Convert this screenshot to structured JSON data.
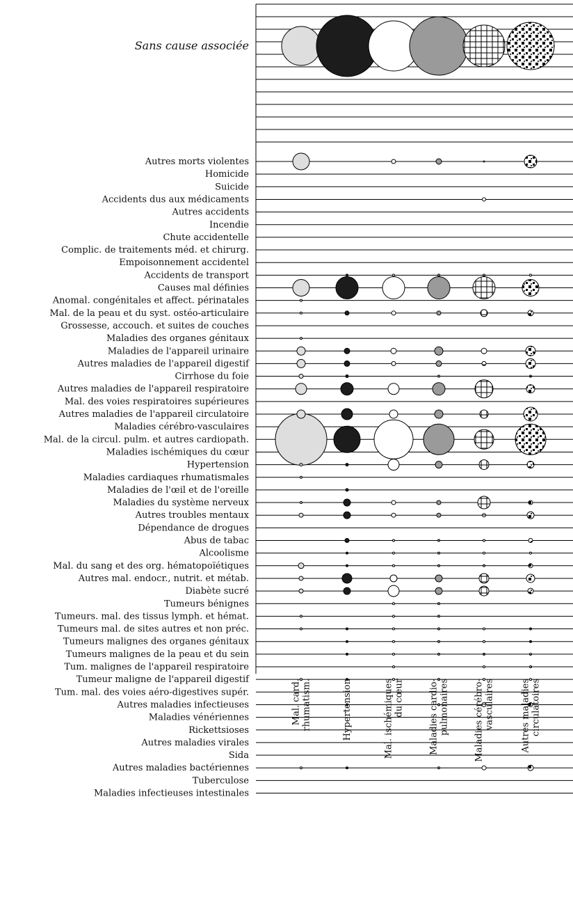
{
  "chart_data": {
    "type": "bubble-matrix",
    "top_row": {
      "label": "Sans cause associée",
      "values": [
        28,
        44,
        36,
        42,
        30,
        34
      ]
    },
    "columns": [
      {
        "key": "rhum",
        "lines": [
          "Mal. card.",
          "rhumatism."
        ],
        "pattern": "lightgray"
      },
      {
        "key": "hyp",
        "lines": [
          "Hypertension"
        ],
        "pattern": "black"
      },
      {
        "key": "isch",
        "lines": [
          "Mal. ischémiques",
          "du cœur"
        ],
        "pattern": "white"
      },
      {
        "key": "pulm",
        "lines": [
          "Maladies cardio-",
          "pulmonaires"
        ],
        "pattern": "gray"
      },
      {
        "key": "cere",
        "lines": [
          "Maladies cérébro-",
          "vasculaires"
        ],
        "pattern": "hatch"
      },
      {
        "key": "circ",
        "lines": [
          "Autres maladies",
          "circulatoires"
        ],
        "pattern": "checker"
      }
    ],
    "rows": [
      {
        "label": "Autres morts violentes",
        "values": [
          12,
          0,
          3,
          4,
          1,
          9
        ]
      },
      {
        "label": "Homicide",
        "values": [
          0,
          0,
          0,
          0,
          0,
          0
        ]
      },
      {
        "label": "Suicide",
        "values": [
          0,
          0,
          0,
          0,
          0,
          0
        ]
      },
      {
        "label": "Accidents dus aux médicaments",
        "values": [
          0,
          0,
          0,
          0,
          2.5,
          0
        ]
      },
      {
        "label": "Autres accidents",
        "values": [
          0,
          0,
          0,
          0,
          0,
          0
        ]
      },
      {
        "label": "Incendie",
        "values": [
          0,
          0,
          0,
          0,
          0,
          0
        ]
      },
      {
        "label": "Chute accidentelle",
        "values": [
          0,
          0,
          0,
          0,
          0,
          0
        ]
      },
      {
        "label": "Complic. de traitements méd. et chirurg.",
        "values": [
          0,
          0,
          0,
          0,
          0,
          0
        ]
      },
      {
        "label": "Empoisonnement accidentel",
        "values": [
          0,
          0,
          0,
          0,
          0,
          0
        ]
      },
      {
        "label": "Accidents de transport",
        "values": [
          0,
          1.5,
          1.5,
          1.5,
          1.5,
          1.5
        ]
      },
      {
        "label": "Causes mal définies",
        "values": [
          12,
          16,
          16,
          16,
          16,
          12
        ]
      },
      {
        "label": "Anomal. congénitales et affect. périnatales",
        "values": [
          1.5,
          0,
          0,
          0,
          0,
          0
        ]
      },
      {
        "label": "Mal. de la peau et du syst. ostéo-articulaire",
        "values": [
          1.5,
          3,
          3,
          3,
          5,
          4
        ]
      },
      {
        "label": "Grossesse, accouch. et suites de couches",
        "values": [
          0,
          0,
          0,
          0,
          0,
          0
        ]
      },
      {
        "label": "Maladies des organes génitaux",
        "values": [
          1.5,
          0,
          0,
          0,
          0,
          0
        ]
      },
      {
        "label": "Maladies de l'appareil urinaire",
        "values": [
          6,
          4,
          4,
          6,
          4,
          7
        ]
      },
      {
        "label": "Autres maladies de l'appareil digestif",
        "values": [
          6,
          4,
          3,
          4,
          3,
          7
        ]
      },
      {
        "label": "Cirrhose du foie",
        "values": [
          3,
          2,
          0,
          1.5,
          0,
          1.5
        ]
      },
      {
        "label": "Autres maladies de l'appareil respiratoire",
        "values": [
          8,
          9,
          8,
          9,
          13,
          6
        ]
      },
      {
        "label": "Mal. des voies respiratoires supérieures",
        "values": [
          0,
          0,
          0,
          0,
          0,
          0
        ]
      },
      {
        "label": "Autres maladies de l'appareil circulatoire",
        "values": [
          6,
          8,
          6,
          6,
          6,
          10
        ]
      },
      {
        "label": "Maladies cérébro-vasculaires",
        "values": [
          0,
          0,
          0,
          0,
          0,
          0
        ]
      },
      {
        "label": "Mal. de la circul. pulm. et autres cardiopath.",
        "values": [
          37,
          19,
          28,
          22,
          14,
          22
        ]
      },
      {
        "label": "Maladies ischémiques du cœur",
        "values": [
          0,
          0,
          0,
          0,
          0,
          0
        ]
      },
      {
        "label": "Hypertension",
        "values": [
          2,
          2,
          8,
          5,
          7,
          5
        ]
      },
      {
        "label": "Maladies cardiaques rhumatismales",
        "values": [
          1.5,
          0,
          0,
          0,
          0,
          0
        ]
      },
      {
        "label": "Maladies de l'œil et de l'oreille",
        "values": [
          0,
          2,
          0,
          0,
          0,
          0
        ]
      },
      {
        "label": "Maladies du système nerveux",
        "values": [
          1.5,
          5,
          3,
          3,
          9,
          3
        ]
      },
      {
        "label": "Autres troubles mentaux",
        "values": [
          3,
          5,
          3,
          3,
          2.5,
          5
        ]
      },
      {
        "label": "Dépendance de drogues",
        "values": [
          0,
          0,
          0,
          0,
          0,
          0
        ]
      },
      {
        "label": "Abus de tabac",
        "values": [
          0,
          3,
          1.5,
          1.5,
          1.5,
          3
        ]
      },
      {
        "label": "Alcoolisme",
        "values": [
          0,
          1.5,
          1.5,
          1.5,
          1.5,
          1.5
        ]
      },
      {
        "label": "Mal. du sang et des org. hématopoïétiques",
        "values": [
          4,
          1.5,
          1.5,
          1.5,
          1.5,
          3
        ]
      },
      {
        "label": "Autres mal. endocr., nutrit. et métab.",
        "values": [
          3,
          7,
          5,
          5,
          7,
          6
        ]
      },
      {
        "label": "Diabète sucré",
        "values": [
          3,
          5,
          8,
          5,
          7,
          4
        ]
      },
      {
        "label": "Tumeurs bénignes",
        "values": [
          0,
          0,
          1.5,
          1.5,
          0,
          0
        ]
      },
      {
        "label": "Tumeurs. mal. des tissus lymph. et hémat.",
        "values": [
          1.5,
          0,
          1.5,
          1.5,
          0,
          0
        ]
      },
      {
        "label": "Tumeurs mal. de sites autres et non préc.",
        "values": [
          1.5,
          1.5,
          1.5,
          1.5,
          1.5,
          1.5
        ]
      },
      {
        "label": "Tumeurs malignes des organes génitaux",
        "values": [
          0,
          1.5,
          1.5,
          1.5,
          1.5,
          1.5
        ]
      },
      {
        "label": "Tumeurs malignes de la peau et du sein",
        "values": [
          0,
          1.5,
          1.5,
          1.5,
          1.5,
          1.5
        ]
      },
      {
        "label": "Tum. malignes de l'appareil respiratoire",
        "values": [
          0,
          0,
          1.5,
          0,
          1.5,
          1.5
        ]
      },
      {
        "label": "Tumeur maligne de l'appareil digestif",
        "values": [
          1.5,
          1.5,
          1.5,
          1.5,
          1.5,
          1.5
        ]
      },
      {
        "label": "Tum. mal. des voies aéro-digestives supér.",
        "values": [
          0,
          0,
          0,
          0,
          0,
          0
        ]
      },
      {
        "label": "Autres maladies infectieuses",
        "values": [
          0,
          1.5,
          0,
          1.5,
          3,
          3
        ]
      },
      {
        "label": "Maladies vénériennes",
        "values": [
          0,
          0,
          0,
          0,
          0,
          0
        ]
      },
      {
        "label": "Rickettsioses",
        "values": [
          0,
          0,
          0,
          0,
          0,
          0
        ]
      },
      {
        "label": "Autres maladies virales",
        "values": [
          0,
          0,
          0,
          0,
          0,
          0
        ]
      },
      {
        "label": "Sida",
        "values": [
          0,
          0,
          0,
          0,
          0,
          0
        ]
      },
      {
        "label": "Autres maladies bactériennes",
        "values": [
          1.5,
          1.5,
          0,
          1.5,
          3,
          4
        ]
      },
      {
        "label": "Tuberculose",
        "values": [
          0,
          0,
          0,
          0,
          0,
          0
        ]
      },
      {
        "label": "Maladies infectieuses intestinales",
        "values": [
          0,
          0,
          0,
          0,
          0,
          0
        ]
      }
    ]
  }
}
